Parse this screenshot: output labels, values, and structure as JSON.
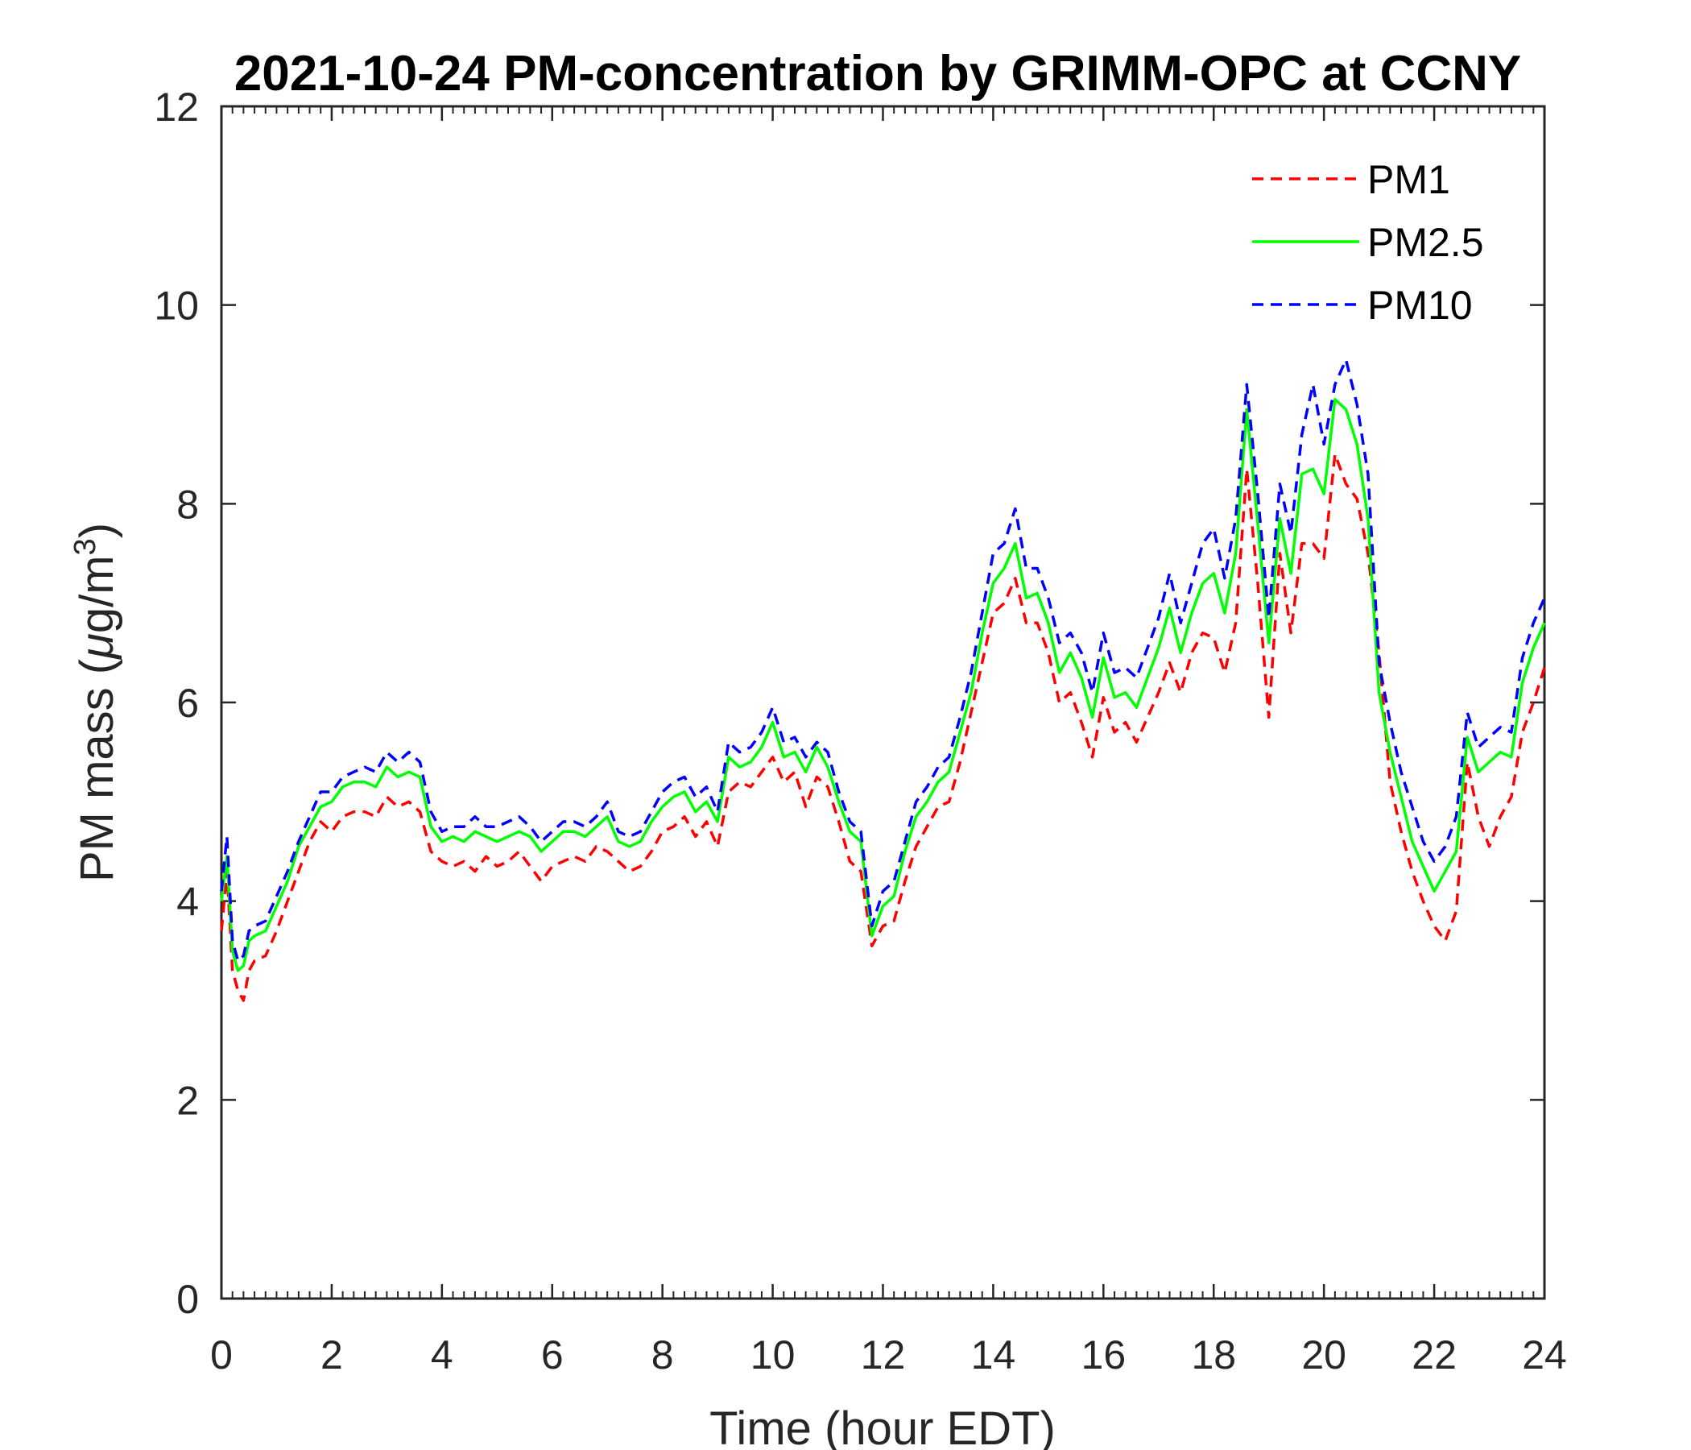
{
  "chart_data": {
    "type": "line",
    "title": "2021-10-24 PM-concentration by GRIMM-OPC at CCNY",
    "xlabel": "Time (hour EDT)",
    "ylabel_main": "PM mass (",
    "ylabel_mu": "μ",
    "ylabel_unit": "g/m",
    "ylabel_sup": "3",
    "ylabel_close": ")",
    "xlim": [
      0,
      24
    ],
    "ylim": [
      0,
      12
    ],
    "xticks": [
      0,
      2,
      4,
      6,
      8,
      10,
      12,
      14,
      16,
      18,
      20,
      22,
      24
    ],
    "yticks": [
      0,
      2,
      4,
      6,
      8,
      10,
      12
    ],
    "grid": false,
    "legend_position": "top-right",
    "series": [
      {
        "name": "PM1",
        "color": "#ff0000",
        "line_style": "dashed",
        "x": [
          0,
          0.1,
          0.2,
          0.3,
          0.4,
          0.5,
          0.6,
          0.8,
          1.0,
          1.2,
          1.4,
          1.6,
          1.8,
          2.0,
          2.2,
          2.4,
          2.6,
          2.8,
          3.0,
          3.2,
          3.4,
          3.6,
          3.8,
          4.0,
          4.2,
          4.4,
          4.6,
          4.8,
          5.0,
          5.2,
          5.4,
          5.6,
          5.8,
          6.0,
          6.2,
          6.4,
          6.6,
          6.8,
          7.0,
          7.2,
          7.4,
          7.6,
          7.8,
          8.0,
          8.2,
          8.4,
          8.6,
          8.8,
          9.0,
          9.2,
          9.4,
          9.6,
          9.8,
          10.0,
          10.2,
          10.4,
          10.6,
          10.8,
          11.0,
          11.2,
          11.4,
          11.6,
          11.8,
          12.0,
          12.2,
          12.4,
          12.6,
          12.8,
          13.0,
          13.2,
          13.4,
          13.6,
          13.8,
          14.0,
          14.2,
          14.4,
          14.6,
          14.8,
          15.0,
          15.2,
          15.4,
          15.6,
          15.8,
          16.0,
          16.2,
          16.4,
          16.6,
          16.8,
          17.0,
          17.2,
          17.4,
          17.6,
          17.8,
          18.0,
          18.2,
          18.4,
          18.6,
          18.8,
          19.0,
          19.2,
          19.4,
          19.6,
          19.8,
          20.0,
          20.2,
          20.4,
          20.6,
          20.8,
          21.0,
          21.2,
          21.4,
          21.6,
          21.8,
          22.0,
          22.2,
          22.4,
          22.6,
          22.8,
          23.0,
          23.2,
          23.4,
          23.6,
          23.8,
          24.0
        ],
        "y": [
          3.7,
          4.3,
          3.3,
          3.1,
          3.0,
          3.3,
          3.4,
          3.45,
          3.7,
          4.0,
          4.3,
          4.6,
          4.8,
          4.7,
          4.85,
          4.9,
          4.9,
          4.85,
          5.05,
          4.95,
          5.0,
          4.9,
          4.5,
          4.4,
          4.35,
          4.4,
          4.3,
          4.45,
          4.35,
          4.4,
          4.5,
          4.35,
          4.2,
          4.35,
          4.4,
          4.45,
          4.4,
          4.55,
          4.5,
          4.4,
          4.3,
          4.35,
          4.5,
          4.7,
          4.75,
          4.85,
          4.65,
          4.8,
          4.55,
          5.1,
          5.2,
          5.15,
          5.3,
          5.45,
          5.2,
          5.3,
          4.95,
          5.25,
          5.15,
          4.8,
          4.4,
          4.3,
          3.55,
          3.75,
          3.8,
          4.2,
          4.55,
          4.75,
          4.95,
          5.0,
          5.4,
          5.9,
          6.4,
          6.9,
          7.0,
          7.25,
          6.8,
          6.8,
          6.5,
          6.0,
          6.1,
          5.8,
          5.45,
          6.05,
          5.7,
          5.8,
          5.6,
          5.85,
          6.1,
          6.4,
          6.1,
          6.5,
          6.7,
          6.65,
          6.3,
          6.8,
          8.35,
          7.2,
          5.85,
          7.5,
          6.7,
          7.6,
          7.6,
          7.45,
          8.5,
          8.2,
          8.05,
          7.5,
          6.5,
          5.2,
          4.7,
          4.3,
          4.0,
          3.75,
          3.6,
          3.9,
          5.4,
          4.85,
          4.55,
          4.85,
          5.05,
          5.7,
          6.0,
          6.35
        ]
      },
      {
        "name": "PM2.5",
        "color": "#00ff00",
        "line_style": "solid",
        "x": [
          0,
          0.1,
          0.2,
          0.3,
          0.4,
          0.5,
          0.6,
          0.8,
          1.0,
          1.2,
          1.4,
          1.6,
          1.8,
          2.0,
          2.2,
          2.4,
          2.6,
          2.8,
          3.0,
          3.2,
          3.4,
          3.6,
          3.8,
          4.0,
          4.2,
          4.4,
          4.6,
          4.8,
          5.0,
          5.2,
          5.4,
          5.6,
          5.8,
          6.0,
          6.2,
          6.4,
          6.6,
          6.8,
          7.0,
          7.2,
          7.4,
          7.6,
          7.8,
          8.0,
          8.2,
          8.4,
          8.6,
          8.8,
          9.0,
          9.2,
          9.4,
          9.6,
          9.8,
          10.0,
          10.2,
          10.4,
          10.6,
          10.8,
          11.0,
          11.2,
          11.4,
          11.6,
          11.8,
          12.0,
          12.2,
          12.4,
          12.6,
          12.8,
          13.0,
          13.2,
          13.4,
          13.6,
          13.8,
          14.0,
          14.2,
          14.4,
          14.6,
          14.8,
          15.0,
          15.2,
          15.4,
          15.6,
          15.8,
          16.0,
          16.2,
          16.4,
          16.6,
          16.8,
          17.0,
          17.2,
          17.4,
          17.6,
          17.8,
          18.0,
          18.2,
          18.4,
          18.6,
          18.8,
          19.0,
          19.2,
          19.4,
          19.6,
          19.8,
          20.0,
          20.2,
          20.4,
          20.6,
          20.8,
          21.0,
          21.2,
          21.4,
          21.6,
          21.8,
          22.0,
          22.2,
          22.4,
          22.6,
          22.8,
          23.0,
          23.2,
          23.4,
          23.6,
          23.8,
          24.0
        ],
        "y": [
          4.0,
          4.45,
          3.5,
          3.3,
          3.35,
          3.6,
          3.65,
          3.7,
          3.95,
          4.2,
          4.55,
          4.75,
          4.95,
          5.0,
          5.15,
          5.2,
          5.2,
          5.15,
          5.35,
          5.25,
          5.3,
          5.25,
          4.75,
          4.6,
          4.65,
          4.6,
          4.7,
          4.65,
          4.6,
          4.65,
          4.7,
          4.65,
          4.5,
          4.6,
          4.7,
          4.7,
          4.65,
          4.75,
          4.85,
          4.6,
          4.55,
          4.6,
          4.8,
          4.95,
          5.05,
          5.1,
          4.9,
          5.0,
          4.8,
          5.45,
          5.35,
          5.4,
          5.55,
          5.8,
          5.45,
          5.5,
          5.3,
          5.55,
          5.35,
          5.0,
          4.7,
          4.6,
          3.65,
          3.95,
          4.05,
          4.5,
          4.85,
          5.0,
          5.2,
          5.3,
          5.7,
          6.1,
          6.7,
          7.2,
          7.35,
          7.6,
          7.05,
          7.1,
          6.8,
          6.3,
          6.5,
          6.25,
          5.85,
          6.45,
          6.05,
          6.1,
          5.95,
          6.25,
          6.55,
          6.95,
          6.5,
          6.9,
          7.2,
          7.3,
          6.9,
          7.5,
          8.95,
          7.8,
          6.6,
          7.85,
          7.3,
          8.3,
          8.35,
          8.1,
          9.05,
          8.95,
          8.6,
          7.85,
          6.1,
          5.5,
          5.05,
          4.6,
          4.35,
          4.1,
          4.3,
          4.5,
          5.65,
          5.3,
          5.4,
          5.5,
          5.45,
          6.2,
          6.55,
          6.8
        ]
      },
      {
        "name": "PM10",
        "color": "#0000ff",
        "line_style": "dashed",
        "x": [
          0,
          0.1,
          0.2,
          0.3,
          0.4,
          0.5,
          0.6,
          0.8,
          1.0,
          1.2,
          1.4,
          1.6,
          1.8,
          2.0,
          2.2,
          2.4,
          2.6,
          2.8,
          3.0,
          3.2,
          3.4,
          3.6,
          3.8,
          4.0,
          4.2,
          4.4,
          4.6,
          4.8,
          5.0,
          5.2,
          5.4,
          5.6,
          5.8,
          6.0,
          6.2,
          6.4,
          6.6,
          6.8,
          7.0,
          7.2,
          7.4,
          7.6,
          7.8,
          8.0,
          8.2,
          8.4,
          8.6,
          8.8,
          9.0,
          9.2,
          9.4,
          9.6,
          9.8,
          10.0,
          10.2,
          10.4,
          10.6,
          10.8,
          11.0,
          11.2,
          11.4,
          11.6,
          11.8,
          12.0,
          12.2,
          12.4,
          12.6,
          12.8,
          13.0,
          13.2,
          13.4,
          13.6,
          13.8,
          14.0,
          14.2,
          14.4,
          14.6,
          14.8,
          15.0,
          15.2,
          15.4,
          15.6,
          15.8,
          16.0,
          16.2,
          16.4,
          16.6,
          16.8,
          17.0,
          17.2,
          17.4,
          17.6,
          17.8,
          18.0,
          18.2,
          18.4,
          18.6,
          18.8,
          19.0,
          19.2,
          19.4,
          19.6,
          19.8,
          20.0,
          20.2,
          20.4,
          20.6,
          20.8,
          21.0,
          21.2,
          21.4,
          21.6,
          21.8,
          22.0,
          22.2,
          22.4,
          22.6,
          22.8,
          23.0,
          23.2,
          23.4,
          23.6,
          23.8,
          24.0
        ],
        "y": [
          4.1,
          4.65,
          3.6,
          3.4,
          3.45,
          3.7,
          3.75,
          3.8,
          4.05,
          4.3,
          4.6,
          4.85,
          5.1,
          5.1,
          5.25,
          5.3,
          5.35,
          5.3,
          5.5,
          5.4,
          5.5,
          5.4,
          4.9,
          4.7,
          4.75,
          4.75,
          4.85,
          4.75,
          4.75,
          4.8,
          4.85,
          4.75,
          4.6,
          4.7,
          4.8,
          4.8,
          4.75,
          4.85,
          5.0,
          4.7,
          4.65,
          4.7,
          4.9,
          5.1,
          5.2,
          5.25,
          5.05,
          5.15,
          4.9,
          5.6,
          5.5,
          5.55,
          5.7,
          5.95,
          5.6,
          5.65,
          5.45,
          5.6,
          5.5,
          5.1,
          4.8,
          4.7,
          3.75,
          4.1,
          4.2,
          4.6,
          5.0,
          5.15,
          5.35,
          5.45,
          5.85,
          6.3,
          6.9,
          7.5,
          7.6,
          7.95,
          7.35,
          7.35,
          7.05,
          6.6,
          6.7,
          6.5,
          6.1,
          6.7,
          6.3,
          6.35,
          6.25,
          6.55,
          6.85,
          7.3,
          6.8,
          7.2,
          7.6,
          7.75,
          7.25,
          7.85,
          9.2,
          8.1,
          6.85,
          8.2,
          7.7,
          8.7,
          9.2,
          8.6,
          9.2,
          9.45,
          9.0,
          8.3,
          6.4,
          5.8,
          5.3,
          4.95,
          4.6,
          4.4,
          4.55,
          4.85,
          5.9,
          5.55,
          5.65,
          5.75,
          5.7,
          6.45,
          6.8,
          7.05
        ]
      }
    ]
  }
}
